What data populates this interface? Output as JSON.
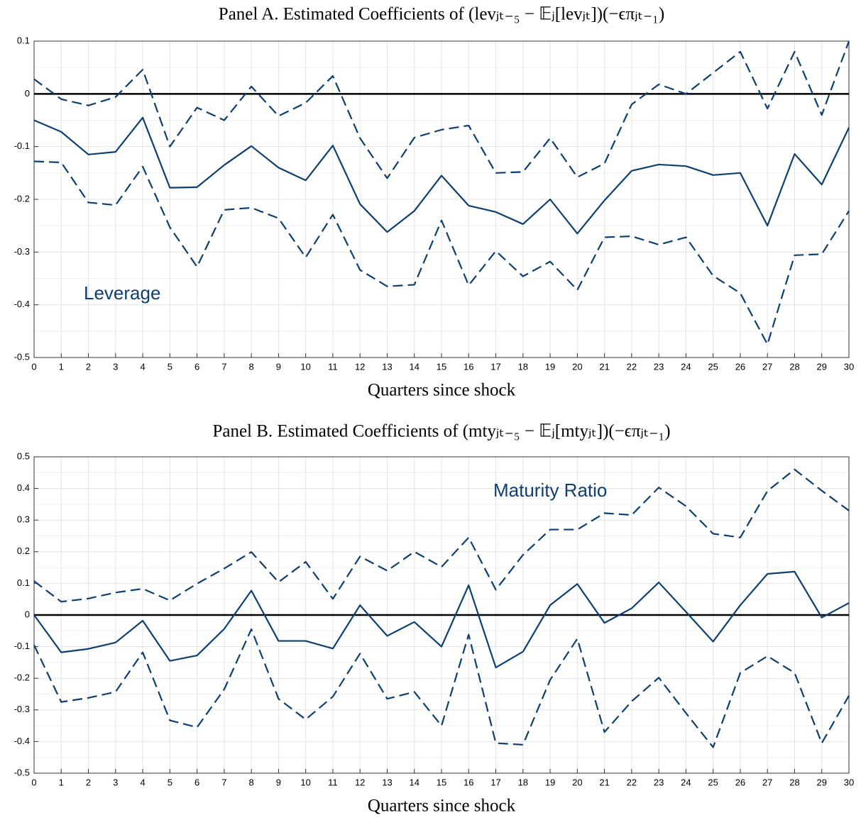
{
  "chart_data": [
    {
      "type": "line",
      "title": "Panel A. Estimated Coefficients of (levⱼₜ₋₅ − 𝔼ⱼ[levⱼₜ])(−ϵπⱼₜ₋₁)",
      "x_label": "Quarters since shock",
      "x": [
        0,
        1,
        2,
        3,
        4,
        5,
        6,
        7,
        8,
        9,
        10,
        11,
        12,
        13,
        14,
        15,
        16,
        17,
        18,
        19,
        20,
        21,
        22,
        23,
        24,
        25,
        26,
        27,
        28,
        29,
        30
      ],
      "xlim": [
        0,
        30
      ],
      "xticks": [
        0,
        1,
        2,
        3,
        4,
        5,
        6,
        7,
        8,
        9,
        10,
        11,
        12,
        13,
        14,
        15,
        16,
        17,
        18,
        19,
        20,
        21,
        22,
        23,
        24,
        25,
        26,
        27,
        28,
        29,
        30
      ],
      "ylim": [
        -0.5,
        0.1
      ],
      "yticks": [
        -0.5,
        -0.4,
        -0.3,
        -0.2,
        -0.1,
        0,
        0.1
      ],
      "grid": true,
      "hline": 0,
      "series": [
        {
          "name": "Leverage",
          "color": "#0d3f71",
          "dash": false,
          "values": [
            -0.05,
            -0.072,
            -0.115,
            -0.11,
            -0.045,
            -0.178,
            -0.177,
            -0.135,
            -0.099,
            -0.14,
            -0.164,
            -0.098,
            -0.209,
            -0.262,
            -0.222,
            -0.155,
            -0.212,
            -0.224,
            -0.247,
            -0.2,
            -0.265,
            -0.202,
            -0.146,
            -0.134,
            -0.137,
            -0.154,
            -0.15,
            -0.25,
            -0.114,
            -0.172,
            -0.064
          ]
        },
        {
          "color": "#0d3f71",
          "dash": true,
          "values": [
            0.028,
            -0.01,
            -0.022,
            -0.006,
            0.046,
            -0.1,
            -0.026,
            -0.05,
            0.014,
            -0.042,
            -0.017,
            0.034,
            -0.084,
            -0.16,
            -0.083,
            -0.068,
            -0.06,
            -0.15,
            -0.148,
            -0.084,
            -0.158,
            -0.132,
            -0.02,
            0.018,
            0,
            0.04,
            0.08,
            -0.028,
            0.08,
            -0.04,
            0.1
          ]
        },
        {
          "color": "#0d3f71",
          "dash": true,
          "values": [
            -0.128,
            -0.13,
            -0.206,
            -0.211,
            -0.138,
            -0.253,
            -0.328,
            -0.22,
            -0.216,
            -0.236,
            -0.31,
            -0.229,
            -0.334,
            -0.365,
            -0.362,
            -0.24,
            -0.363,
            -0.298,
            -0.346,
            -0.318,
            -0.372,
            -0.272,
            -0.27,
            -0.286,
            -0.272,
            -0.345,
            -0.378,
            -0.475,
            -0.306,
            -0.304,
            -0.222
          ]
        }
      ]
    },
    {
      "type": "line",
      "title": "Panel B. Estimated Coefficients of (mtyⱼₜ₋₅ − 𝔼ⱼ[mtyⱼₜ])(−ϵπⱼₜ₋₁)",
      "x_label": "Quarters since shock",
      "x": [
        0,
        1,
        2,
        3,
        4,
        5,
        6,
        7,
        8,
        9,
        10,
        11,
        12,
        13,
        14,
        15,
        16,
        17,
        18,
        19,
        20,
        21,
        22,
        23,
        24,
        25,
        26,
        27,
        28,
        29,
        30
      ],
      "xlim": [
        0,
        30
      ],
      "xticks": [
        0,
        1,
        2,
        3,
        4,
        5,
        6,
        7,
        8,
        9,
        10,
        11,
        12,
        13,
        14,
        15,
        16,
        17,
        18,
        19,
        20,
        21,
        22,
        23,
        24,
        25,
        26,
        27,
        28,
        29,
        30
      ],
      "ylim": [
        -0.5,
        0.5
      ],
      "yticks": [
        -0.5,
        -0.4,
        -0.3,
        -0.2,
        -0.1,
        0,
        0.1,
        0.2,
        0.3,
        0.4,
        0.5
      ],
      "grid": true,
      "hline": 0,
      "series": [
        {
          "name": "Maturity Ratio",
          "color": "#0d3f71",
          "dash": false,
          "values": [
            0,
            -0.118,
            -0.107,
            -0.087,
            -0.018,
            -0.145,
            -0.128,
            -0.044,
            0.077,
            -0.082,
            -0.082,
            -0.106,
            0.031,
            -0.066,
            -0.022,
            -0.1,
            0.094,
            -0.166,
            -0.116,
            0.031,
            0.098,
            -0.025,
            0.021,
            0.103,
            0.01,
            -0.084,
            0.031,
            0.13,
            0.137,
            -0.008,
            0.038
          ]
        },
        {
          "color": "#0d3f71",
          "dash": true,
          "values": [
            0.107,
            0.042,
            0.052,
            0.071,
            0.083,
            0.046,
            0.099,
            0.147,
            0.199,
            0.104,
            0.168,
            0.051,
            0.185,
            0.14,
            0.2,
            0.152,
            0.245,
            0.08,
            0.19,
            0.27,
            0.27,
            0.322,
            0.316,
            0.403,
            0.344,
            0.257,
            0.245,
            0.392,
            0.46,
            0.393,
            0.33
          ]
        },
        {
          "color": "#0d3f71",
          "dash": true,
          "values": [
            -0.095,
            -0.275,
            -0.262,
            -0.243,
            -0.118,
            -0.333,
            -0.355,
            -0.235,
            -0.045,
            -0.265,
            -0.33,
            -0.258,
            -0.122,
            -0.265,
            -0.243,
            -0.35,
            -0.062,
            -0.405,
            -0.41,
            -0.205,
            -0.075,
            -0.37,
            -0.273,
            -0.198,
            -0.31,
            -0.418,
            -0.183,
            -0.13,
            -0.183,
            -0.405,
            -0.255
          ]
        }
      ]
    }
  ]
}
